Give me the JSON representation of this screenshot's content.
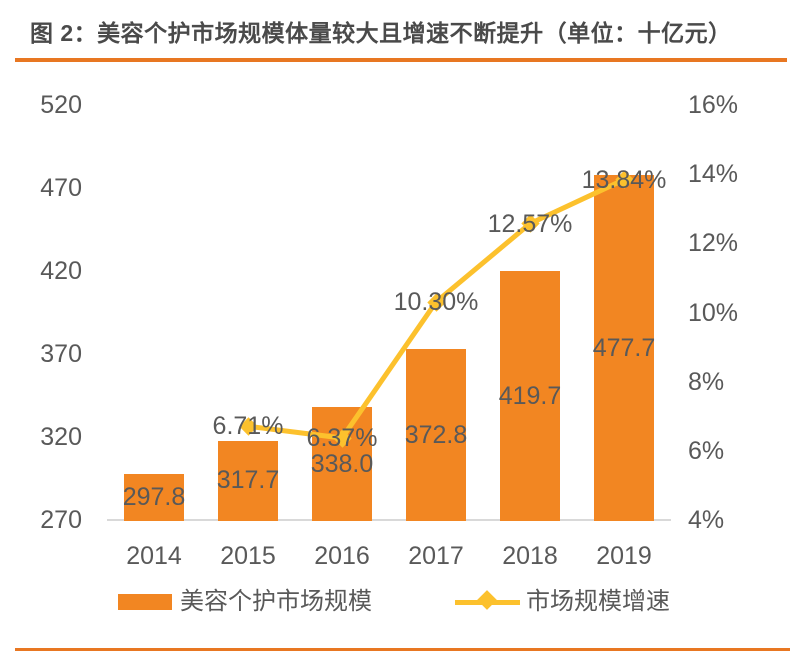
{
  "header": {
    "title": "图 2：美容个护市场规模体量较大且增速不断提升（单位：十亿元）"
  },
  "colors": {
    "accent_rule": "#E87722",
    "bar": "#F28622",
    "line": "#FCC12D",
    "text": "#595959",
    "title_text": "#4A4A4A",
    "axis_line": "#D9D9D9"
  },
  "chart_data": {
    "type": "bar",
    "subtype": "bar-with-line-combo",
    "title": "图 2：美容个护市场规模体量较大且增速不断提升（单位：十亿元）",
    "unit": "十亿元",
    "categories": [
      "2014",
      "2015",
      "2016",
      "2017",
      "2018",
      "2019"
    ],
    "series": [
      {
        "name": "美容个护市场规模",
        "type": "bar",
        "axis": "left",
        "values": [
          297.8,
          317.7,
          338.0,
          372.8,
          419.7,
          477.7
        ],
        "data_labels": [
          "297.8",
          "317.7",
          "338.0",
          "372.8",
          "419.7",
          "477.7"
        ]
      },
      {
        "name": "市场规模增速",
        "type": "line",
        "axis": "right",
        "values": [
          null,
          6.71,
          6.37,
          10.3,
          12.57,
          13.84
        ],
        "data_labels": [
          null,
          "6.71%",
          "6.37%",
          "10.30%",
          "12.57%",
          "13.84%"
        ]
      }
    ],
    "left_axis": {
      "min": 270,
      "max": 520,
      "ticks": [
        "520",
        "470",
        "420",
        "370",
        "320",
        "270"
      ]
    },
    "right_axis": {
      "min": 4,
      "max": 16,
      "ticks": [
        "16%",
        "14%",
        "12%",
        "10%",
        "8%",
        "6%",
        "4%"
      ]
    },
    "grid": false,
    "legend_position": "bottom"
  },
  "legend": {
    "bar_label": "美容个护市场规模",
    "line_label": "市场规模增速"
  }
}
